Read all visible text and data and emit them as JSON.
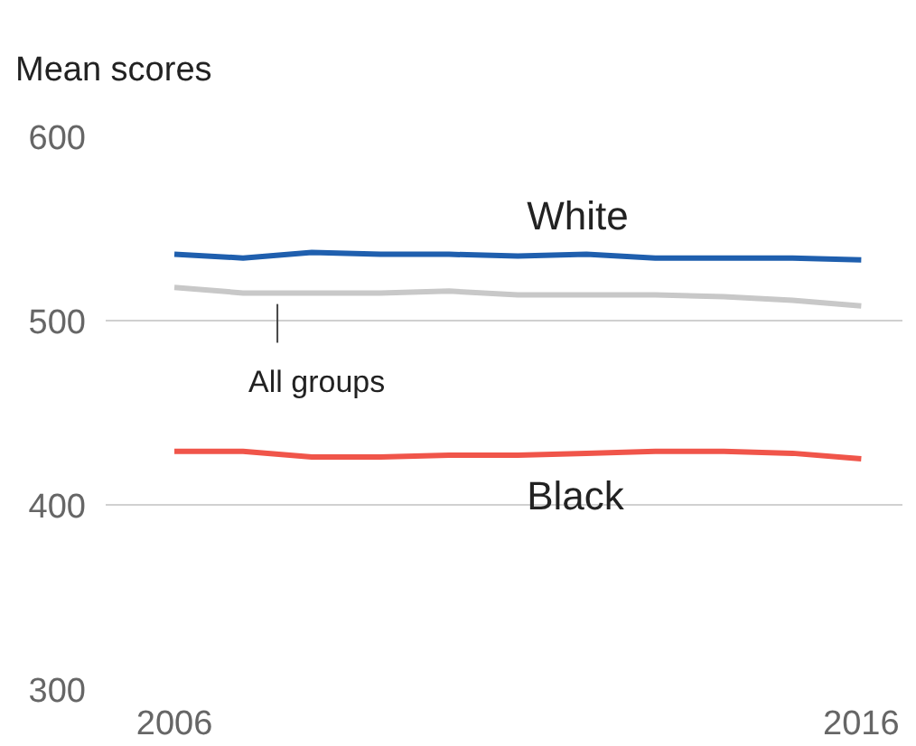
{
  "chart_data": {
    "type": "line",
    "title": "Mean scores",
    "x": [
      2006,
      2007,
      2008,
      2009,
      2010,
      2011,
      2012,
      2013,
      2014,
      2015,
      2016
    ],
    "series": [
      {
        "name": "White",
        "color": "#1f5fae",
        "values": [
          536,
          534,
          537,
          536,
          536,
          535,
          536,
          534,
          534,
          534,
          533
        ]
      },
      {
        "name": "All groups",
        "color": "#c8c8c8",
        "values": [
          518,
          515,
          515,
          515,
          516,
          514,
          514,
          514,
          513,
          511,
          508
        ]
      },
      {
        "name": "Black",
        "color": "#f0554a",
        "values": [
          429,
          429,
          426,
          426,
          427,
          427,
          428,
          429,
          429,
          428,
          425
        ]
      }
    ],
    "xlim": [
      2005,
      2016.6
    ],
    "xticks": [
      2006,
      2016
    ],
    "ylim": [
      300,
      600
    ],
    "yticks": [
      300,
      400,
      500,
      600
    ],
    "grid": "y"
  }
}
